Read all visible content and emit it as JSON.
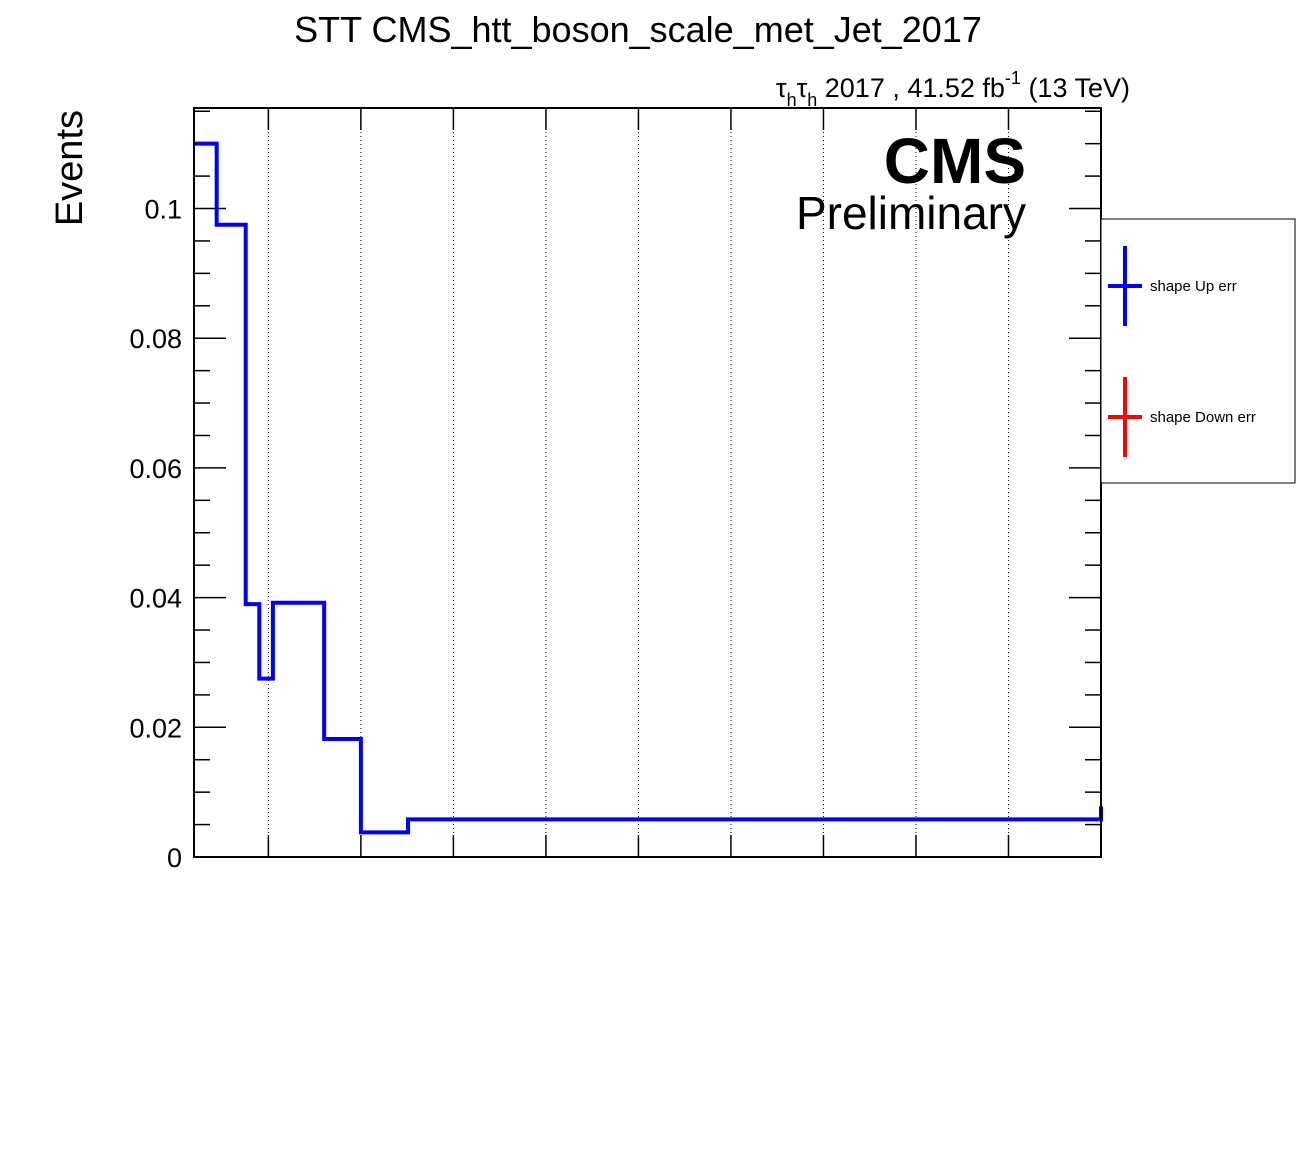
{
  "chart_data": {
    "type": "line",
    "step": true,
    "title": "STT CMS_htt_boson_scale_met_Jet_2017",
    "lumi_label": {
      "tau": "τ",
      "sub": "h",
      "text": " 2017 , 41.52 fb",
      "sup": "-1",
      "energy": " (13 TeV)"
    },
    "cms_label": "CMS",
    "preliminary_label": "Preliminary",
    "ylabel": "Events",
    "xlabel": "",
    "xlim": [
      0,
      1
    ],
    "ylim": [
      0,
      0.1155
    ],
    "y_ticks": [
      {
        "value": 0,
        "label": "0"
      },
      {
        "value": 0.02,
        "label": "0.02"
      },
      {
        "value": 0.04,
        "label": "0.04"
      },
      {
        "value": 0.06,
        "label": "0.06"
      },
      {
        "value": 0.08,
        "label": "0.08"
      },
      {
        "value": 0.1,
        "label": "0.1"
      }
    ],
    "x_grid": [
      0.082,
      0.184,
      0.286,
      0.388,
      0.49,
      0.592,
      0.694,
      0.796,
      0.898
    ],
    "grid": "vertical-dotted",
    "legend_position": "right",
    "series": [
      {
        "name": "shape Up err",
        "color": "#0000ff",
        "bin_edges": [
          0,
          0.025,
          0.057,
          0.072,
          0.087,
          0.1435,
          0.184,
          0.236,
          1
        ],
        "values": [
          0.11,
          0.0975,
          0.039,
          0.0275,
          0.0392,
          0.0182,
          0.0038,
          0.0058,
          0.0078
        ]
      },
      {
        "name": "shape Down err",
        "color": "#ff0000",
        "bin_edges": [],
        "values": []
      }
    ]
  }
}
